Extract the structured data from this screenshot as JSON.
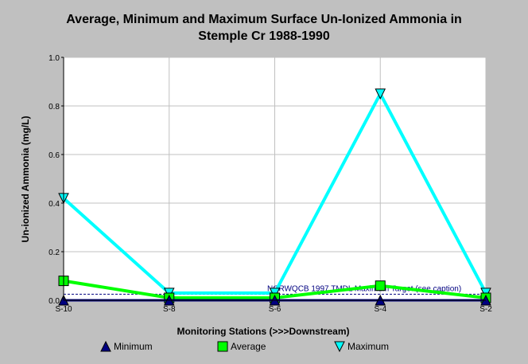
{
  "chart_data": {
    "type": "line",
    "title_line1": "Average, Minimum and Maximum Surface Un-Ionized Ammonia in",
    "title_line2": "Stemple Cr 1988-1990",
    "xlabel": "Monitoring Stations (>>>Downstream)",
    "ylabel": "Un-ionized Ammonia (mg/L)",
    "categories": [
      "S-10",
      "S-8",
      "S-6",
      "S-4",
      "S-2"
    ],
    "ylim": [
      0,
      1.0
    ],
    "yticks": [
      "0.0",
      "0.2",
      "0.4",
      "0.6",
      "0.8",
      "1.0"
    ],
    "grid": true,
    "legend_position": "bottom",
    "series": [
      {
        "name": "Maximum",
        "values": [
          0.42,
          0.03,
          0.03,
          0.85,
          0.03
        ],
        "color": "#00ffff",
        "marker": "triangle-down"
      },
      {
        "name": "Average",
        "values": [
          0.08,
          0.01,
          0.01,
          0.06,
          0.01
        ],
        "color": "#00ff00",
        "marker": "square"
      },
      {
        "name": "Minimum",
        "values": [
          0.0,
          0.0,
          0.0,
          0.0,
          0.0
        ],
        "color": "#000080",
        "marker": "triangle-up"
      }
    ],
    "reference_line": {
      "label": "NCRWQCB 1997 TMDL Maximum Target (see caption)",
      "value": 0.025,
      "color": "#000080"
    },
    "legend": [
      "Minimum",
      "Average",
      "Maximum"
    ]
  }
}
